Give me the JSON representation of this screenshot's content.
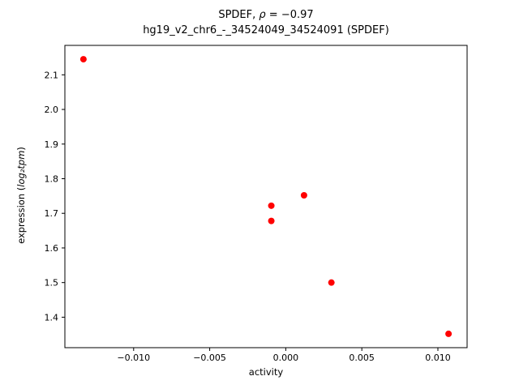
{
  "figure": {
    "title_prefix": "SPDEF, ",
    "title_rho": "ρ",
    "title_suffix": " = −0.97",
    "subtitle": "hg19_v2_chr6_-_34524049_34524091 (SPDEF)",
    "xlabel": "activity",
    "ylabel_prefix": "expression (",
    "ylabel_math": "log₂tpm",
    "ylabel_suffix": ")"
  },
  "chart_data": {
    "type": "scatter",
    "title": "SPDEF, ρ = −0.97",
    "subtitle": "hg19_v2_chr6_-_34524049_34524091 (SPDEF)",
    "xlabel": "activity",
    "ylabel": "expression (log₂tpm)",
    "marker_color": "#ff0000",
    "marker_radius_px": 4,
    "grid": false,
    "legend": null,
    "xlim": [
      -0.01452,
      0.01192
    ],
    "ylim": [
      1.312,
      2.185
    ],
    "points": [
      {
        "x": -0.0133,
        "y": 2.145
      },
      {
        "x": -0.00095,
        "y": 1.722
      },
      {
        "x": -0.00095,
        "y": 1.678
      },
      {
        "x": 0.0012,
        "y": 1.752
      },
      {
        "x": 0.003,
        "y": 1.5
      },
      {
        "x": 0.0107,
        "y": 1.352
      }
    ],
    "x_ticks": [
      {
        "value": -0.01,
        "label": "−0.010"
      },
      {
        "value": -0.005,
        "label": "−0.005"
      },
      {
        "value": 0.0,
        "label": "0.000"
      },
      {
        "value": 0.005,
        "label": "0.005"
      },
      {
        "value": 0.01,
        "label": "0.010"
      }
    ],
    "y_ticks": [
      {
        "value": 1.4,
        "label": "1.4"
      },
      {
        "value": 1.5,
        "label": "1.5"
      },
      {
        "value": 1.6,
        "label": "1.6"
      },
      {
        "value": 1.7,
        "label": "1.7"
      },
      {
        "value": 1.8,
        "label": "1.8"
      },
      {
        "value": 1.9,
        "label": "1.9"
      },
      {
        "value": 2.0,
        "label": "2.0"
      },
      {
        "value": 2.1,
        "label": "2.1"
      }
    ]
  }
}
